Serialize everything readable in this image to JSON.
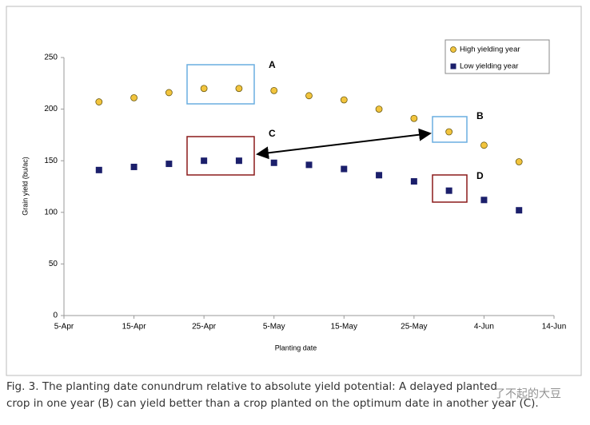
{
  "chart_data": {
    "type": "scatter",
    "x_label": "Planting date",
    "y_label": "Grain yield (bu/ac)",
    "x": [
      100,
      105,
      110,
      115,
      120,
      125,
      130,
      135,
      140,
      145,
      150,
      155,
      160
    ],
    "series": [
      {
        "name": "High yielding year",
        "color": "#f2c43d",
        "marker": "circle",
        "values": [
          207,
          211,
          216,
          220,
          220,
          218,
          213,
          209,
          200,
          191,
          178,
          165,
          149
        ]
      },
      {
        "name": "Low yielding year",
        "color": "#1b1f6b",
        "marker": "square",
        "values": [
          141,
          144,
          147,
          150,
          150,
          148,
          146,
          142,
          136,
          130,
          121,
          112,
          102
        ]
      }
    ],
    "xlim": [
      95,
      165
    ],
    "xticks": [
      {
        "value": 95,
        "label": "5-Apr"
      },
      {
        "value": 105,
        "label": "15-Apr"
      },
      {
        "value": 115,
        "label": "25-Apr"
      },
      {
        "value": 125,
        "label": "5-May"
      },
      {
        "value": 135,
        "label": "15-May"
      },
      {
        "value": 145,
        "label": "25-May"
      },
      {
        "value": 155,
        "label": "4-Jun"
      },
      {
        "value": 165,
        "label": "14-Jun"
      }
    ],
    "ylim": [
      0,
      250
    ],
    "yticks": [
      0,
      50,
      100,
      150,
      200,
      250
    ],
    "legend": "top-right",
    "annotations": [
      "A",
      "B",
      "C",
      "D"
    ]
  },
  "caption": [
    "Fig. 3. The planting date conundrum relative to absolute yield potential: A delayed planted",
    "crop in one year (B) can yield better than a crop planted on the optimum date in another year (C)."
  ],
  "watermark": "了不起的大豆"
}
